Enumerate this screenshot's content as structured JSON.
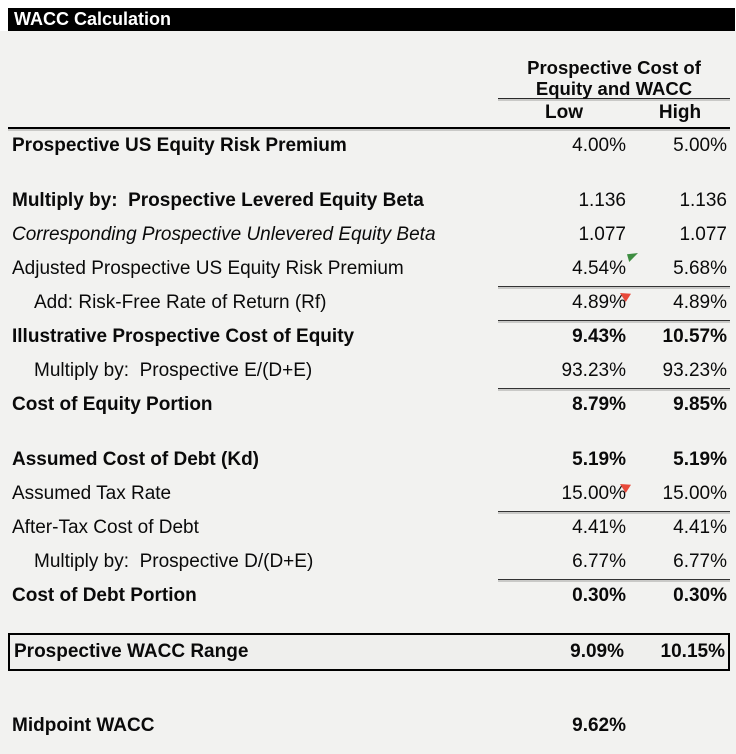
{
  "title": "WACC Calculation",
  "colors": {
    "title_bar_bg": "#000000",
    "title_bar_text": "#ffffff",
    "sheet_bg": "#f2f2f0",
    "marker_green": "#3e8e41",
    "marker_red": "#e8493a"
  },
  "icons": {
    "green_marker": "green-flag-triangle-icon",
    "red_marker": "red-flag-triangle-icon"
  },
  "table": {
    "group_header_line1": "Prospective Cost of",
    "group_header_line2": "Equity and WACC",
    "col_low": "Low",
    "col_high": "High",
    "rows": [
      {
        "kind": "row",
        "label": "Prospective US Equity Risk Premium",
        "low": "4.00%",
        "high": "5.00%",
        "label_bold": true
      },
      {
        "kind": "blank"
      },
      {
        "kind": "row",
        "label": "Multiply by:  Prospective Levered Equity Beta",
        "low": "1.136",
        "high": "1.136",
        "label_bold": true
      },
      {
        "kind": "row",
        "label": "Corresponding Prospective Unlevered Equity Beta",
        "low": "1.077",
        "high": "1.077",
        "italic": true
      },
      {
        "kind": "row",
        "label": "Adjusted Prospective US Equity Risk Premium",
        "low": "4.54%",
        "high": "5.68%",
        "underline": true,
        "marker": "green"
      },
      {
        "kind": "row",
        "label": "Add: Risk-Free Rate of Return (Rf)",
        "low": "4.89%",
        "high": "4.89%",
        "indent": true,
        "underline": true,
        "marker": "red"
      },
      {
        "kind": "row",
        "label": "Illustrative Prospective Cost of Equity",
        "low": "9.43%",
        "high": "10.57%",
        "label_bold": true,
        "value_bold": true
      },
      {
        "kind": "row",
        "label": "Multiply by:  Prospective E/(D+E)",
        "low": "93.23%",
        "high": "93.23%",
        "indent": true,
        "underline": true
      },
      {
        "kind": "row",
        "label": "Cost of Equity Portion",
        "low": "8.79%",
        "high": "9.85%",
        "label_bold": true,
        "value_bold": true
      },
      {
        "kind": "blank"
      },
      {
        "kind": "row",
        "label": "Assumed Cost of Debt (Kd)",
        "low": "5.19%",
        "high": "5.19%",
        "label_bold": true,
        "value_bold": true
      },
      {
        "kind": "row",
        "label": "Assumed Tax Rate",
        "low": "15.00%",
        "high": "15.00%",
        "underline": true,
        "marker": "red"
      },
      {
        "kind": "row",
        "label": "After-Tax Cost of Debt",
        "low": "4.41%",
        "high": "4.41%"
      },
      {
        "kind": "row",
        "label": "Multiply by:  Prospective D/(D+E)",
        "low": "6.77%",
        "high": "6.77%",
        "indent": true,
        "underline": true
      },
      {
        "kind": "row",
        "label": "Cost of Debt Portion",
        "low": "0.30%",
        "high": "0.30%",
        "label_bold": true,
        "value_bold": true
      },
      {
        "kind": "blank"
      },
      {
        "kind": "box",
        "label": "Prospective WACC Range",
        "low": "9.09%",
        "high": "10.15%",
        "label_bold": true,
        "value_bold": true
      },
      {
        "kind": "blank_large"
      },
      {
        "kind": "row",
        "label": "Midpoint WACC",
        "low": "9.62%",
        "high": "",
        "label_bold": true,
        "value_bold": true
      }
    ]
  }
}
